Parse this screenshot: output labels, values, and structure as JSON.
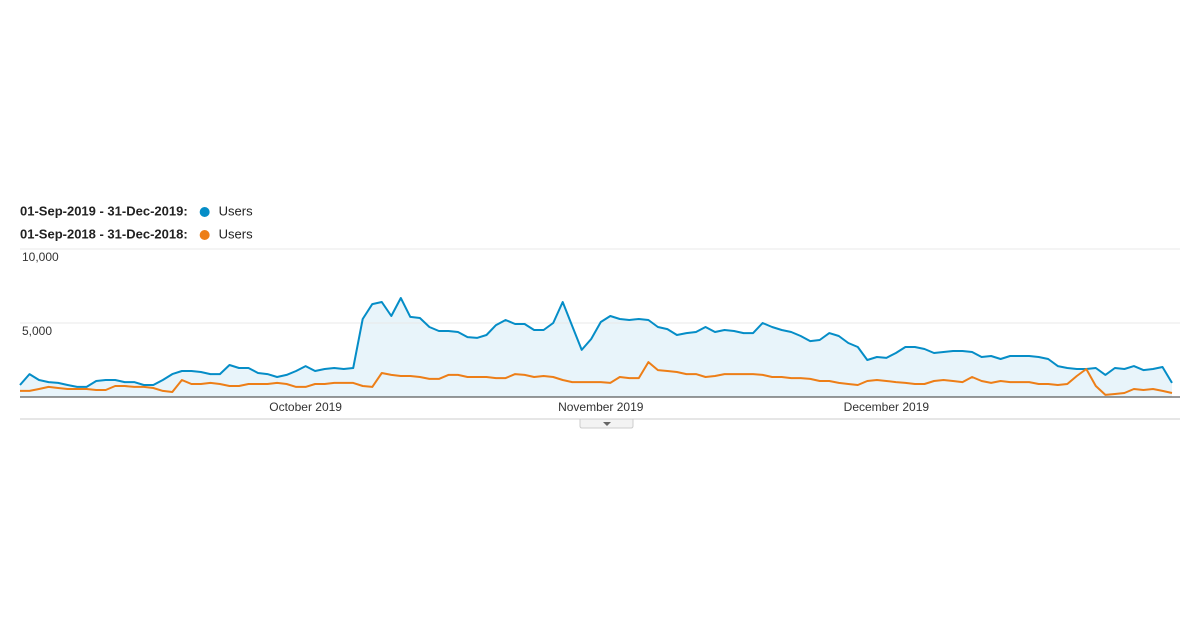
{
  "chart_data": {
    "type": "line",
    "categories": [
      null,
      null,
      null,
      null,
      null,
      null,
      null,
      null,
      null,
      null,
      null,
      null,
      null,
      null,
      null,
      null,
      null,
      null,
      null,
      null,
      null,
      null,
      null,
      null,
      null,
      null,
      null,
      null,
      null,
      null,
      "October 2019",
      null,
      null,
      null,
      null,
      null,
      null,
      null,
      null,
      null,
      null,
      null,
      null,
      null,
      null,
      null,
      null,
      null,
      null,
      null,
      null,
      null,
      null,
      null,
      null,
      null,
      null,
      null,
      null,
      null,
      null,
      "November 2019",
      null,
      null,
      null,
      null,
      null,
      null,
      null,
      null,
      null,
      null,
      null,
      null,
      null,
      null,
      null,
      null,
      null,
      null,
      null,
      null,
      null,
      null,
      null,
      null,
      null,
      null,
      null,
      null,
      null,
      "December 2019",
      null,
      null,
      null,
      null,
      null,
      null,
      null,
      null,
      null,
      null,
      null,
      null,
      null,
      null,
      null,
      null,
      null,
      null,
      null,
      null,
      null,
      null,
      null,
      null,
      null,
      null,
      null,
      null,
      null,
      null
    ],
    "series": [
      {
        "period": "01-Sep-2019 - 31-Dec-2019:",
        "name": "Users",
        "color": "#058dc7",
        "fill": "#e8f4fa",
        "values": [
          810,
          1550,
          1150,
          1010,
          950,
          810,
          680,
          680,
          1080,
          1150,
          1150,
          1010,
          1010,
          810,
          810,
          1150,
          1550,
          1760,
          1760,
          1690,
          1550,
          1550,
          2160,
          1960,
          1960,
          1620,
          1550,
          1350,
          1490,
          1760,
          2090,
          1760,
          1890,
          1960,
          1890,
          1960,
          5270,
          6280,
          6420,
          5470,
          6690,
          5410,
          5340,
          4730,
          4460,
          4460,
          4390,
          4050,
          3990,
          4190,
          4860,
          5200,
          4930,
          4930,
          4530,
          4530,
          5000,
          6420,
          4800,
          3180,
          3920,
          5070,
          5470,
          5270,
          5200,
          5270,
          5200,
          4730,
          4590,
          4190,
          4320,
          4390,
          4730,
          4390,
          4530,
          4460,
          4320,
          4320,
          5000,
          4730,
          4530,
          4390,
          4120,
          3780,
          3850,
          4320,
          4120,
          3650,
          3380,
          2500,
          2700,
          2640,
          2970,
          3380,
          3380,
          3240,
          2970,
          3040,
          3110,
          3110,
          3040,
          2700,
          2770,
          2570,
          2770,
          2770,
          2770,
          2700,
          2570,
          2090,
          1960,
          1890,
          1890,
          1960,
          1490,
          1960,
          1890,
          2090,
          1820,
          1890,
          2030,
          950
        ]
      },
      {
        "period": "01-Sep-2018 - 31-Dec-2018:",
        "name": "Users",
        "color": "#ed7e17",
        "values": [
          410,
          410,
          540,
          680,
          610,
          540,
          540,
          540,
          470,
          470,
          740,
          740,
          680,
          680,
          610,
          410,
          340,
          1150,
          880,
          880,
          950,
          880,
          740,
          740,
          880,
          880,
          880,
          950,
          880,
          680,
          680,
          880,
          880,
          950,
          950,
          950,
          740,
          680,
          1620,
          1490,
          1420,
          1420,
          1350,
          1220,
          1220,
          1490,
          1490,
          1350,
          1350,
          1350,
          1280,
          1280,
          1550,
          1490,
          1350,
          1420,
          1350,
          1150,
          1010,
          1010,
          1010,
          1010,
          950,
          1350,
          1280,
          1280,
          2360,
          1820,
          1760,
          1690,
          1550,
          1550,
          1350,
          1420,
          1550,
          1550,
          1550,
          1550,
          1490,
          1350,
          1350,
          1280,
          1280,
          1220,
          1080,
          1080,
          950,
          880,
          810,
          1080,
          1150,
          1080,
          1010,
          950,
          880,
          880,
          1080,
          1150,
          1080,
          1010,
          1350,
          1080,
          950,
          1080,
          1010,
          1010,
          1010,
          880,
          880,
          810,
          880,
          1420,
          1890,
          740,
          140,
          200,
          270,
          540,
          470,
          540,
          410,
          270
        ]
      }
    ],
    "ylim": [
      0,
      10000
    ],
    "yticks": [
      {
        "value": 10000,
        "label": "10,000"
      },
      {
        "value": 5000,
        "label": "5,000"
      }
    ],
    "grid": true
  }
}
